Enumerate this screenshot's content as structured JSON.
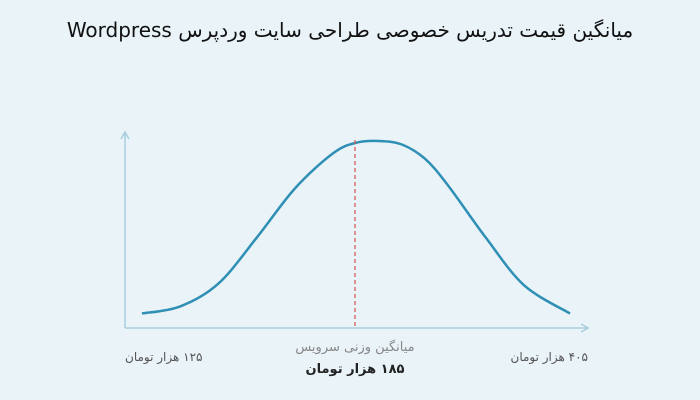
{
  "title": "میانگین قیمت تدریس خصوصی طراحی سایت وردپرس Wordpress",
  "colors": {
    "background": "#e9f3f8",
    "curve": "#2f8fb5",
    "axis": "#a9cede",
    "mean_line": "#d9534f"
  },
  "chart_data": {
    "type": "line",
    "title": "میانگین قیمت تدریس خصوصی طراحی سایت وردپرس Wordpress",
    "xlabel": "",
    "ylabel": "",
    "grid": false,
    "x_tick_labels": {
      "min": "۱۲۵ هزار تومان",
      "max": "۴۰۵ هزار تومان"
    },
    "mean": {
      "label": "میانگین وزنی سرویس",
      "value_label": "۱۸۵ هزار تومان"
    },
    "x_values": [
      125,
      150,
      175,
      200,
      225,
      250,
      265,
      280,
      295,
      310,
      325,
      350,
      375,
      405
    ],
    "y_values": [
      0.02,
      0.06,
      0.19,
      0.45,
      0.73,
      0.93,
      0.99,
      1.0,
      0.98,
      0.9,
      0.75,
      0.45,
      0.18,
      0.02
    ],
    "xlim": [
      125,
      405
    ],
    "ylim": [
      0,
      1
    ]
  }
}
